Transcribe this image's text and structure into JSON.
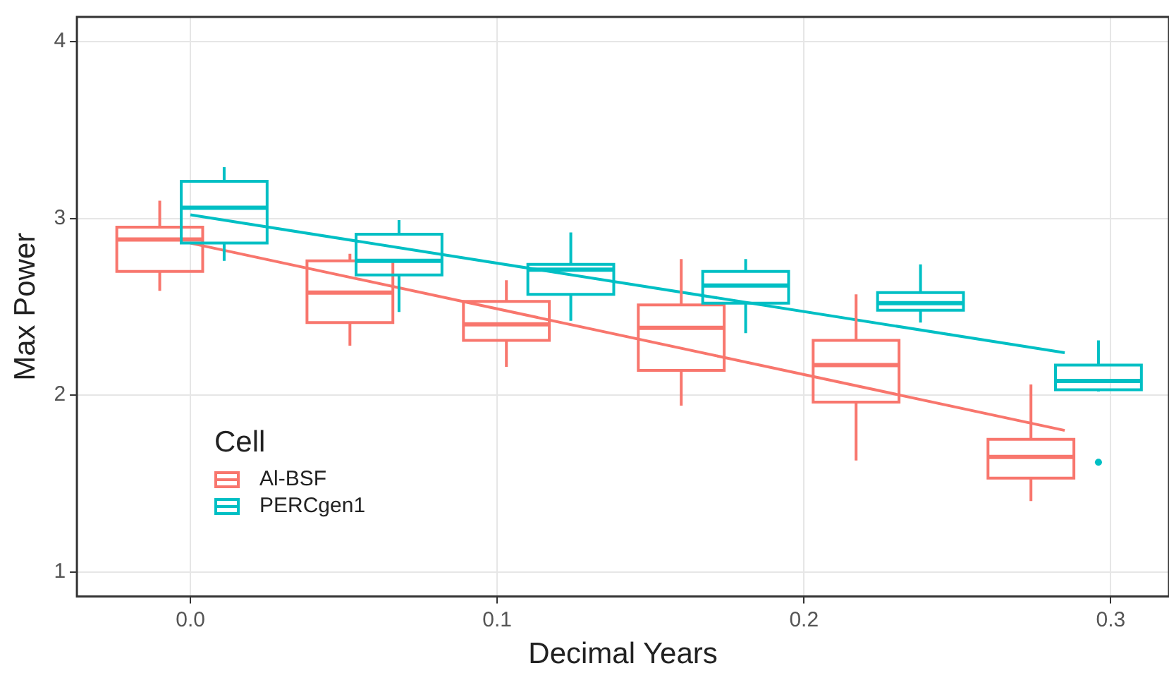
{
  "chart_data": {
    "type": "box",
    "xlabel": "Decimal Years",
    "ylabel": "Max Power",
    "legend_title": "Cell",
    "legend": "bottom left",
    "grid": true,
    "xlim": [
      -0.037,
      0.319
    ],
    "xticks": [
      {
        "value": 0,
        "label": "0.0"
      },
      0.1,
      0.2,
      0.3
    ],
    "ylim": [
      0.86,
      4.14
    ],
    "yticks": [
      1,
      2,
      3,
      4
    ],
    "series": [
      {
        "name": "Al-BSF",
        "color": "#f8766d",
        "x": [
          -0.01,
          0.052,
          0.103,
          0.16,
          0.217,
          0.274
        ],
        "boxes": [
          {
            "low": 2.59,
            "q1": 2.7,
            "median": 2.88,
            "q3": 2.95,
            "high": 3.1
          },
          {
            "low": 2.28,
            "q1": 2.41,
            "median": 2.58,
            "q3": 2.76,
            "high": 2.8
          },
          {
            "low": 2.16,
            "q1": 2.31,
            "median": 2.4,
            "q3": 2.53,
            "high": 2.65
          },
          {
            "low": 1.94,
            "q1": 2.14,
            "median": 2.38,
            "q3": 2.51,
            "high": 2.77
          },
          {
            "low": 1.63,
            "q1": 1.96,
            "median": 2.17,
            "q3": 2.31,
            "high": 2.57
          },
          {
            "low": 1.4,
            "q1": 1.53,
            "median": 1.65,
            "q3": 1.75,
            "high": 2.06
          }
        ]
      },
      {
        "name": "PERCgen1",
        "color": "#00bfc4",
        "x": [
          0.011,
          0.068,
          0.124,
          0.181,
          0.238,
          0.296
        ],
        "boxes": [
          {
            "low": 2.76,
            "q1": 2.86,
            "median": 3.06,
            "q3": 3.21,
            "high": 3.29
          },
          {
            "low": 2.47,
            "q1": 2.68,
            "median": 2.76,
            "q3": 2.91,
            "high": 2.99
          },
          {
            "low": 2.42,
            "q1": 2.57,
            "median": 2.71,
            "q3": 2.74,
            "high": 2.92
          },
          {
            "low": 2.35,
            "q1": 2.52,
            "median": 2.62,
            "q3": 2.7,
            "high": 2.77
          },
          {
            "low": 2.41,
            "q1": 2.48,
            "median": 2.52,
            "q3": 2.58,
            "high": 2.74
          },
          {
            "low": 2.02,
            "q1": 2.03,
            "median": 2.08,
            "q3": 2.17,
            "high": 2.31,
            "outliers": [
              1.62
            ]
          }
        ]
      },
      {
        "type": "line",
        "color": "#f8766d",
        "x": [
          0,
          0.285
        ],
        "values": [
          2.86,
          1.8
        ]
      },
      {
        "type": "line",
        "color": "#00bfc4",
        "x": [
          0,
          0.285
        ],
        "values": [
          3.02,
          2.24
        ]
      }
    ]
  }
}
